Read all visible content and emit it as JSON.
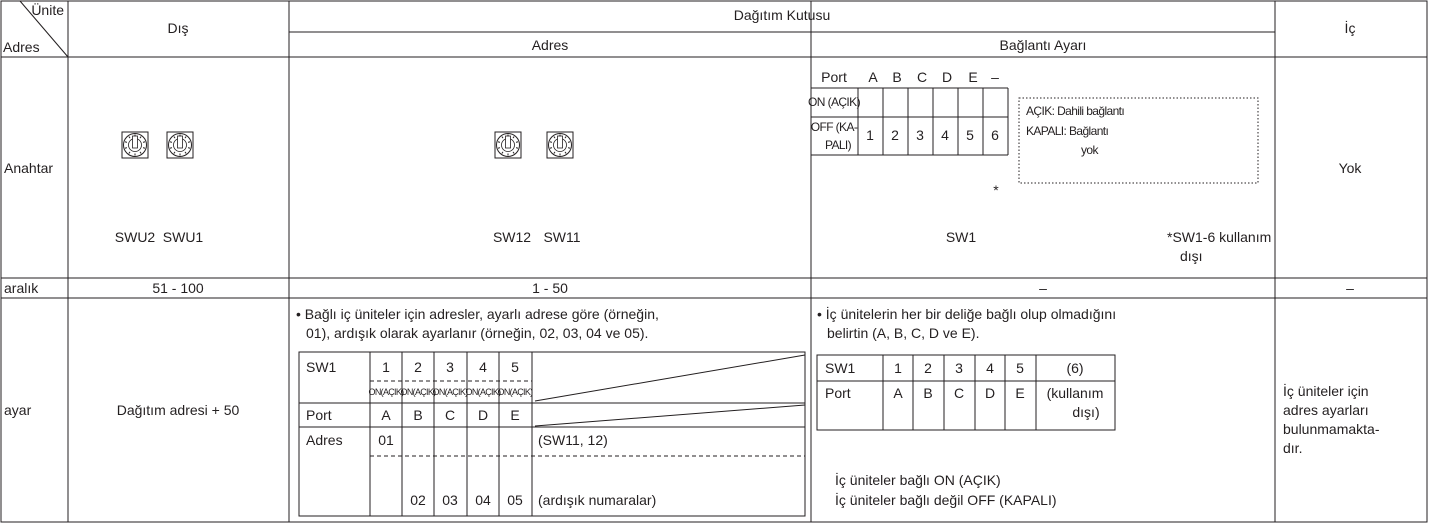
{
  "header": {
    "corner_top": "Ünite",
    "corner_bottom": "Adres",
    "outdoor": "Dış",
    "distribution_box": "Dağıtım Kutusu",
    "address": "Adres",
    "connection": "Bağlantı Ayarı",
    "indoor": "İç"
  },
  "rows": {
    "switch": {
      "label": "Anahtar",
      "outdoor_switches": [
        "SWU2",
        "SWU1"
      ],
      "address_switches": [
        "SW12",
        "SW11"
      ],
      "port_table": {
        "header": [
          "Port",
          "A",
          "B",
          "C",
          "D",
          "E",
          "–"
        ],
        "on": "ON (AÇIK)",
        "off": [
          "OFF (KA-",
          "PALI)"
        ],
        "numbers": [
          "1",
          "2",
          "3",
          "4",
          "5",
          "6"
        ],
        "asterisk": "*"
      },
      "legend": [
        "AÇIK: Dahili bağlantı",
        "KAPALI: Bağlantı",
        "yok"
      ],
      "connection_switch": "SW1",
      "connection_note": [
        "*SW1-6 kullanım",
        "dışı"
      ],
      "indoor": "Yok"
    },
    "range": {
      "label": "aralık",
      "outdoor": "51 - 100",
      "address": "1 - 50",
      "connection": "–",
      "indoor": "–"
    },
    "setting": {
      "label": "ayar",
      "outdoor": "Dağıtım adresi + 50",
      "address_note": [
        "• Bağlı iç üniteler için adresler, ayarlı adrese göre (örneğin,",
        "01), ardışık olarak ayarlanır (örneğin, 02, 03, 04 ve 05)."
      ],
      "address_table": {
        "sw_label": "SW1",
        "sw_numbers": [
          "1",
          "2",
          "3",
          "4",
          "5"
        ],
        "sw_states": [
          "ON(AÇIK)",
          "ON(AÇIK)",
          "ON(AÇIK)",
          "ON(AÇIK)",
          "ON(AÇIK)"
        ],
        "port_label": "Port",
        "ports": [
          "A",
          "B",
          "C",
          "D",
          "E"
        ],
        "address_label": "Adres",
        "first_address": "01",
        "first_note": "(SW11, 12)",
        "following_addresses": [
          "02",
          "03",
          "04",
          "05"
        ],
        "following_note": "(ardışık numaralar)"
      },
      "connection_note": [
        "• İç ünitelerin her bir deliğe bağlı olup olmadığını",
        "belirtin (A, B, C, D ve E)."
      ],
      "connection_table": {
        "sw_label": "SW1",
        "sw_numbers": [
          "1",
          "2",
          "3",
          "4",
          "5",
          "(6)"
        ],
        "port_label": "Port",
        "ports": [
          "A",
          "B",
          "C",
          "D",
          "E"
        ],
        "unused": [
          "(kullanım",
          "dışı)"
        ]
      },
      "connection_footer": [
        "İç üniteler bağlı ON (AÇIK)",
        "İç üniteler bağlı değil OFF (KAPALI)"
      ],
      "indoor": [
        "İç üniteler için",
        "adres ayarları",
        "bulunmamakta-",
        "dır."
      ]
    }
  }
}
